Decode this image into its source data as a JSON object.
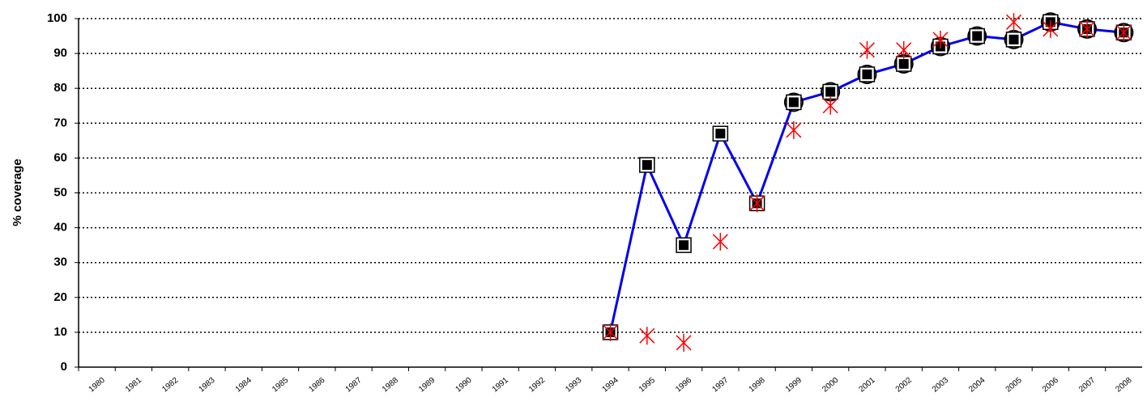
{
  "chart_data": {
    "type": "line",
    "y_label": "% coverage",
    "categories": [
      "1980",
      "1981",
      "1982",
      "1983",
      "1984",
      "1985",
      "1986",
      "1987",
      "1988",
      "1989",
      "1990",
      "1991",
      "1992",
      "1993",
      "1994",
      "1995",
      "1996",
      "1997",
      "1998",
      "1999",
      "2000",
      "2001",
      "2002",
      "2003",
      "2004",
      "2005",
      "2006",
      "2007",
      "2008"
    ],
    "series": [
      {
        "color": "#0000ee",
        "marker": "square",
        "values": [
          null,
          null,
          null,
          null,
          null,
          null,
          null,
          null,
          null,
          null,
          null,
          null,
          null,
          null,
          10,
          58,
          35,
          67,
          47,
          76,
          79,
          84,
          87,
          92,
          95,
          94,
          99,
          97,
          96
        ]
      },
      {
        "color": "#ff0000",
        "marker": "star",
        "values": [
          null,
          null,
          null,
          null,
          null,
          null,
          null,
          null,
          null,
          null,
          null,
          null,
          null,
          null,
          10,
          9,
          7,
          36,
          47,
          68,
          75,
          91,
          91,
          94,
          null,
          99,
          97,
          97,
          96
        ]
      },
      {
        "color": "#000000",
        "marker": "circle",
        "values": [
          null,
          null,
          null,
          null,
          null,
          null,
          null,
          null,
          null,
          null,
          null,
          null,
          null,
          null,
          null,
          null,
          null,
          null,
          null,
          76,
          79,
          84,
          87,
          92,
          95,
          94,
          99,
          97,
          96
        ]
      }
    ],
    "ylim": [
      0,
      100
    ],
    "yticks": [
      0,
      10,
      20,
      30,
      40,
      50,
      60,
      70,
      80,
      90,
      100
    ],
    "grid": true
  }
}
